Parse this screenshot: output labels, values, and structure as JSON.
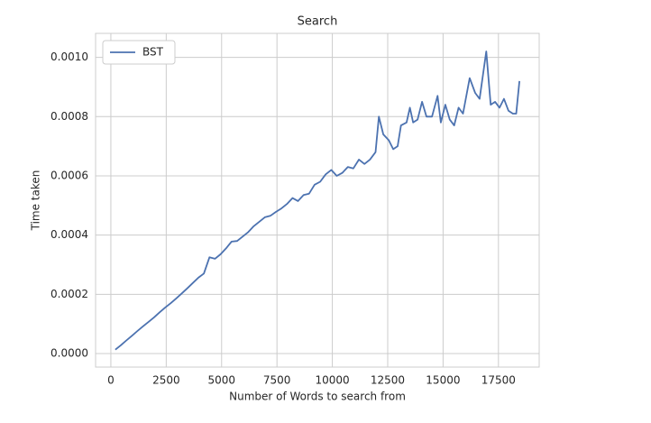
{
  "chart_data": {
    "type": "line",
    "title": "Search",
    "xlabel": "Number of Words to search from",
    "ylabel": "Time taken",
    "x": [
      200,
      450,
      700,
      950,
      1200,
      1450,
      1700,
      1950,
      2200,
      2450,
      2700,
      2950,
      3200,
      3450,
      3700,
      3950,
      4200,
      4450,
      4700,
      4950,
      5200,
      5450,
      5700,
      5950,
      6200,
      6450,
      6700,
      6950,
      7200,
      7450,
      7700,
      7950,
      8200,
      8450,
      8700,
      8950,
      9200,
      9450,
      9700,
      9950,
      10200,
      10450,
      10700,
      10950,
      11200,
      11450,
      11700,
      11950,
      12100,
      12300,
      12550,
      12750,
      12950,
      13100,
      13350,
      13500,
      13650,
      13850,
      14050,
      14250,
      14500,
      14750,
      14900,
      15100,
      15300,
      15500,
      15700,
      15900,
      16200,
      16450,
      16650,
      16950,
      17150,
      17350,
      17550,
      17750,
      17950,
      18150,
      18300,
      18450
    ],
    "series": [
      {
        "name": "BST",
        "color": "#4c72b0",
        "values": [
          1.3e-05,
          2.8e-05,
          4.4e-05,
          6e-05,
          7.6e-05,
          9.2e-05,
          0.000107,
          0.000122,
          0.000139,
          0.000155,
          0.00017,
          0.000186,
          0.000203,
          0.00022,
          0.000238,
          0.000256,
          0.00027,
          0.000325,
          0.00032,
          0.000335,
          0.000355,
          0.000378,
          0.00038,
          0.000395,
          0.00041,
          0.00043,
          0.000445,
          0.00046,
          0.000465,
          0.000478,
          0.00049,
          0.000505,
          0.000525,
          0.000515,
          0.000535,
          0.00054,
          0.00057,
          0.00058,
          0.000605,
          0.00062,
          0.0006,
          0.00061,
          0.00063,
          0.000625,
          0.000655,
          0.00064,
          0.000655,
          0.00068,
          0.0008,
          0.00074,
          0.00072,
          0.00069,
          0.0007,
          0.00077,
          0.00078,
          0.00083,
          0.00078,
          0.00079,
          0.00085,
          0.0008,
          0.0008,
          0.00087,
          0.00078,
          0.00084,
          0.00079,
          0.00077,
          0.00083,
          0.00081,
          0.00093,
          0.00088,
          0.00086,
          0.00102,
          0.00084,
          0.00085,
          0.00083,
          0.00086,
          0.00082,
          0.00081,
          0.00081,
          0.00092
        ]
      }
    ],
    "xlim": [
      -690,
      19340
    ],
    "ylim": [
      -4.57e-05,
      0.001081
    ],
    "xticks": [
      0,
      2500,
      5000,
      7500,
      10000,
      12500,
      15000,
      17500
    ],
    "yticks": [
      {
        "value": 0,
        "label": "0.0000"
      },
      {
        "value": 0.0002,
        "label": "0.0002"
      },
      {
        "value": 0.0004,
        "label": "0.0004"
      },
      {
        "value": 0.0006,
        "label": "0.0006"
      },
      {
        "value": 0.0008,
        "label": "0.0008"
      },
      {
        "value": 0.001,
        "label": "0.0010"
      }
    ],
    "grid": true,
    "legend": "upper-left"
  }
}
